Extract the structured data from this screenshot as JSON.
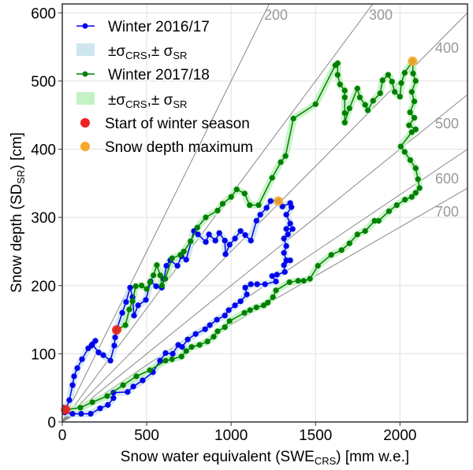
{
  "chart_data": {
    "type": "scatter",
    "xlabel": {
      "main": "Snow water equivalent (SWE",
      "sub": "CRS",
      "tail": ") [mm w.e.]"
    },
    "ylabel": {
      "main": "Snow depth (SD",
      "sub": "SR",
      "tail": ") [cm]"
    },
    "xlim": [
      0,
      2400
    ],
    "ylim": [
      0,
      613
    ],
    "xticks": [
      0,
      500,
      1000,
      1500,
      2000
    ],
    "yticks": [
      0,
      100,
      200,
      300,
      400,
      500,
      600
    ],
    "grid": true,
    "legend_position": "top-left",
    "density_lines": [
      200,
      300,
      400,
      500,
      600,
      700
    ],
    "legend": {
      "winter1": "Winter 2016/17",
      "winter2": "Winter 2017/18",
      "sigma": {
        "a": "±σ",
        "sub1": "CRS",
        "b": ",± σ",
        "sub2": "SR"
      },
      "start": "Start of winter season",
      "max": "Snow depth maximum"
    },
    "colors": {
      "winter1": "#0000ee",
      "band1": "#cfe6f0",
      "winter2": "#008000",
      "band2": "#c4f2c4",
      "start": "#ee2222",
      "max": "#f7a92a",
      "rho": "#888888"
    },
    "series": [
      {
        "name": "Winter 2016/17",
        "points": [
          [
            5,
            21
          ],
          [
            20,
            18
          ],
          [
            42,
            32
          ],
          [
            61,
            54
          ],
          [
            70,
            67
          ],
          [
            89,
            79
          ],
          [
            117,
            92
          ],
          [
            154,
            108
          ],
          [
            173,
            112
          ],
          [
            196,
            119
          ],
          [
            178,
            114
          ],
          [
            215,
            102
          ],
          [
            243,
            98
          ],
          [
            285,
            90
          ],
          [
            308,
            112
          ],
          [
            313,
            124
          ],
          [
            322,
            135
          ],
          [
            355,
            160
          ],
          [
            378,
            176
          ],
          [
            402,
            197
          ],
          [
            416,
            183
          ],
          [
            425,
            156
          ],
          [
            449,
            171
          ],
          [
            495,
            179
          ],
          [
            523,
            206
          ],
          [
            556,
            199
          ],
          [
            589,
            197
          ],
          [
            603,
            210
          ],
          [
            617,
            229
          ],
          [
            640,
            237
          ],
          [
            682,
            229
          ],
          [
            706,
            243
          ],
          [
            734,
            238
          ],
          [
            780,
            280
          ],
          [
            804,
            275
          ],
          [
            850,
            264
          ],
          [
            869,
            275
          ],
          [
            907,
            266
          ],
          [
            930,
            277
          ],
          [
            963,
            266
          ],
          [
            967,
            246
          ],
          [
            991,
            260
          ],
          [
            1023,
            269
          ],
          [
            1056,
            280
          ],
          [
            1084,
            274
          ],
          [
            1117,
            266
          ],
          [
            1150,
            295
          ],
          [
            1173,
            304
          ],
          [
            1210,
            314
          ],
          [
            1234,
            324
          ],
          [
            1280,
            324
          ],
          [
            1304,
            316
          ],
          [
            1350,
            321
          ],
          [
            1357,
            315
          ],
          [
            1327,
            304
          ],
          [
            1350,
            291
          ],
          [
            1327,
            283
          ],
          [
            1364,
            283
          ],
          [
            1336,
            275
          ],
          [
            1313,
            269
          ],
          [
            1327,
            258
          ],
          [
            1313,
            248
          ],
          [
            1327,
            237
          ],
          [
            1350,
            237
          ],
          [
            1313,
            230
          ],
          [
            1318,
            220
          ],
          [
            1271,
            216
          ],
          [
            1243,
            214
          ],
          [
            1266,
            206
          ],
          [
            1201,
            202
          ],
          [
            1154,
            202
          ],
          [
            1117,
            202
          ],
          [
            1084,
            197
          ],
          [
            1093,
            187
          ],
          [
            1056,
            177
          ],
          [
            1023,
            171
          ],
          [
            986,
            164
          ],
          [
            963,
            156
          ],
          [
            916,
            150
          ],
          [
            874,
            142
          ],
          [
            846,
            136
          ],
          [
            790,
            129
          ],
          [
            743,
            121
          ],
          [
            710,
            110
          ],
          [
            687,
            113
          ],
          [
            654,
            100
          ],
          [
            612,
            101
          ],
          [
            579,
            90
          ],
          [
            537,
            73
          ],
          [
            476,
            61
          ],
          [
            421,
            52
          ],
          [
            387,
            44
          ],
          [
            303,
            43
          ],
          [
            303,
            35
          ],
          [
            270,
            25
          ],
          [
            224,
            20
          ],
          [
            168,
            12
          ],
          [
            112,
            12
          ],
          [
            61,
            12
          ],
          [
            15,
            14
          ]
        ]
      },
      {
        "name": "Winter 2017/18",
        "points": [
          [
            322,
            135
          ],
          [
            374,
            142
          ],
          [
            397,
            165
          ],
          [
            416,
            177
          ],
          [
            435,
            199
          ],
          [
            470,
            200
          ],
          [
            500,
            195
          ],
          [
            520,
            205
          ],
          [
            540,
            215
          ],
          [
            560,
            230
          ],
          [
            580,
            215
          ],
          [
            590,
            200
          ],
          [
            610,
            210
          ],
          [
            650,
            240
          ],
          [
            700,
            245
          ],
          [
            720,
            250
          ],
          [
            760,
            265
          ],
          [
            800,
            285
          ],
          [
            850,
            300
          ],
          [
            920,
            310
          ],
          [
            950,
            320
          ],
          [
            1000,
            330
          ],
          [
            1033,
            341
          ],
          [
            1080,
            335
          ],
          [
            1110,
            318
          ],
          [
            1163,
            318
          ],
          [
            1243,
            358
          ],
          [
            1294,
            381
          ],
          [
            1322,
            390
          ],
          [
            1369,
            445
          ],
          [
            1500,
            466
          ],
          [
            1617,
            523
          ],
          [
            1631,
            526
          ],
          [
            1631,
            509
          ],
          [
            1645,
            495
          ],
          [
            1673,
            486
          ],
          [
            1673,
            476
          ],
          [
            1673,
            453
          ],
          [
            1673,
            439
          ],
          [
            1701,
            460
          ],
          [
            1748,
            489
          ],
          [
            1762,
            476
          ],
          [
            1794,
            465
          ],
          [
            1810,
            457
          ],
          [
            1841,
            471
          ],
          [
            1883,
            482
          ],
          [
            1897,
            501
          ],
          [
            1930,
            509
          ],
          [
            1953,
            499
          ],
          [
            1969,
            484
          ],
          [
            2000,
            477
          ],
          [
            2008,
            497
          ],
          [
            2028,
            512
          ],
          [
            2075,
            529
          ],
          [
            2078,
            511
          ],
          [
            2093,
            500
          ],
          [
            2070,
            484
          ],
          [
            2085,
            470
          ],
          [
            2060,
            454
          ],
          [
            2085,
            446
          ],
          [
            2054,
            435
          ],
          [
            2093,
            429
          ],
          [
            2070,
            425
          ],
          [
            2005,
            404
          ],
          [
            2028,
            396
          ],
          [
            2061,
            384
          ],
          [
            2093,
            372
          ],
          [
            2107,
            356
          ],
          [
            2116,
            343
          ],
          [
            2093,
            336
          ],
          [
            2070,
            330
          ],
          [
            2030,
            326
          ],
          [
            1981,
            318
          ],
          [
            1935,
            309
          ],
          [
            1874,
            295
          ],
          [
            1850,
            295
          ],
          [
            1794,
            280
          ],
          [
            1748,
            275
          ],
          [
            1701,
            262
          ],
          [
            1654,
            252
          ],
          [
            1593,
            245
          ],
          [
            1514,
            229
          ],
          [
            1467,
            210
          ],
          [
            1430,
            207
          ],
          [
            1397,
            207
          ],
          [
            1346,
            205
          ],
          [
            1266,
            193
          ],
          [
            1248,
            183
          ],
          [
            1217,
            175
          ],
          [
            1193,
            171
          ],
          [
            1150,
            168
          ],
          [
            1112,
            164
          ],
          [
            1079,
            160
          ],
          [
            991,
            148
          ],
          [
            963,
            139
          ],
          [
            920,
            133
          ],
          [
            897,
            125
          ],
          [
            860,
            118
          ],
          [
            813,
            113
          ],
          [
            766,
            110
          ],
          [
            734,
            104
          ],
          [
            706,
            96
          ],
          [
            650,
            92
          ],
          [
            612,
            90
          ],
          [
            519,
            76
          ],
          [
            439,
            67
          ],
          [
            360,
            54
          ],
          [
            266,
            38
          ],
          [
            178,
            29
          ],
          [
            107,
            21
          ],
          [
            20,
            18
          ],
          [
            0,
            15
          ]
        ]
      }
    ],
    "start_points": [
      [
        20,
        18
      ],
      [
        322,
        135
      ]
    ],
    "max_points": [
      [
        1280,
        324
      ],
      [
        2075,
        529
      ]
    ]
  }
}
